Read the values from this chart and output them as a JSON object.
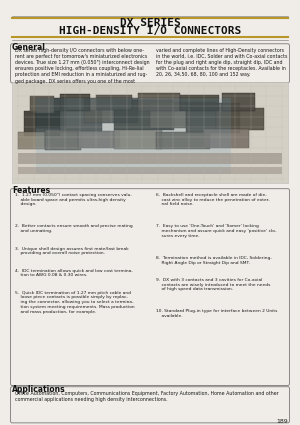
{
  "page_bg": "#f0ede8",
  "title_line1": "DX SERIES",
  "title_line2": "HIGH-DENSITY I/O CONNECTORS",
  "title_color": "#111111",
  "section_general_title": "General",
  "general_left": "DX series high-density I/O connectors with below one-\nrent are perfect for tomorrow's miniaturized electronics\ndevices. True size 1.27 mm (0.050\") interconnect design\nensures positive locking, effortless coupling, Hi-Re-lial\nprotection and EMI reduction in a miniaturized and rug-\nged package. DX series offers you one of the most",
  "general_right": "varied and complete lines of High-Density connectors\nin the world, i.e. IDC, Solder and with Co-axial contacts\nfor the plug and right angle dip, straight dip, IDC and\nwith Co-axial contacts for the receptacles. Available in\n20, 26, 34,50, 68, 80, 100 and 152 way.",
  "section_features_title": "Features",
  "feat_left": [
    "1.  1.27 mm (0.050\") contact spacing conserves valu-\n    able board space and permits ultra-high density\n    design.",
    "2.  Better contacts ensure smooth and precise mating\n    and unmating.",
    "3.  Unique shell design assures first mate/last break\n    providing and overall noise protection.",
    "4.  IDC termination allows quick and low cost termina-\n    tion to AWG 0.08 & 0.30 wires.",
    "5.  Quick IDC termination of 1.27 mm pitch cable and\n    loose piece contacts is possible simply by replac-\n    ing the connector, allowing you to select a termina-\n    tion system meeting requirements. Mass production\n    and mass production, for example."
  ],
  "feat_right": [
    "6.  Backshell and receptacle shell are made of die-\n    cast zinc alloy to reduce the penetration of exter-\n    nal field noise.",
    "7.  Easy to use 'One-Touch' and 'Somer' locking\n    mechanism and assure quick and easy 'positive' clo-\n    sures every time.",
    "8.  Termination method is available in IDC, Soldering,\n    Right Angle Dip or Straight Dip and SMT.",
    "9.  DX with 3 contacts and 3 cavities for Co-axial\n    contacts are wisely introduced to meet the needs\n    of high speed data transmission.",
    "10. Standard Plug-in type for interface between 2 Units\n    available."
  ],
  "section_applications_title": "Applications",
  "applications_body": "Office Automation, Computers, Communications Equipment, Factory Automation, Home Automation and other\ncommercial applications needing high density interconnections.",
  "page_number": "189",
  "gold_line_color": "#b8962a",
  "box_border_color": "#777777",
  "text_color": "#1a1a1a",
  "img_bg": "#c8c4b8"
}
